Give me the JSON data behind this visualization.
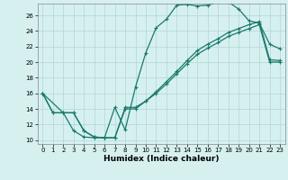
{
  "title": "",
  "xlabel": "Humidex (Indice chaleur)",
  "background_color": "#d6f0f0",
  "grid_color": "#b8dada",
  "line_color": "#1a7a6a",
  "xlim": [
    -0.5,
    23.5
  ],
  "ylim": [
    9.5,
    27.5
  ],
  "xticks": [
    0,
    1,
    2,
    3,
    4,
    5,
    6,
    7,
    8,
    9,
    10,
    11,
    12,
    13,
    14,
    15,
    16,
    17,
    18,
    19,
    20,
    21,
    22,
    23
  ],
  "yticks": [
    10,
    12,
    14,
    16,
    18,
    20,
    22,
    24,
    26
  ],
  "line1_x": [
    0,
    1,
    2,
    3,
    4,
    5,
    6,
    7,
    8,
    9,
    10,
    11,
    12,
    13,
    14,
    15,
    16,
    17,
    18,
    19,
    20,
    21,
    22,
    23
  ],
  "line1_y": [
    16,
    13.5,
    13.5,
    11.2,
    10.4,
    10.3,
    10.3,
    14.2,
    11.3,
    16.8,
    21.2,
    24.4,
    25.5,
    27.3,
    27.4,
    27.2,
    27.3,
    27.7,
    27.7,
    26.8,
    25.3,
    25.0,
    22.3,
    21.7
  ],
  "line2_x": [
    0,
    1,
    2,
    3,
    4,
    5,
    6,
    7,
    8,
    9,
    10,
    11,
    12,
    13,
    14,
    15,
    16,
    17,
    18,
    19,
    20,
    21,
    22,
    23
  ],
  "line2_y": [
    16,
    13.5,
    13.5,
    13.5,
    11.2,
    10.4,
    10.3,
    10.3,
    14.2,
    14.2,
    15.0,
    16.2,
    17.5,
    18.8,
    20.2,
    21.5,
    22.3,
    23.0,
    23.8,
    24.3,
    24.8,
    25.2,
    20.3,
    20.2
  ],
  "line3_x": [
    0,
    2,
    3,
    4,
    5,
    6,
    7,
    8,
    9,
    10,
    11,
    12,
    13,
    14,
    15,
    16,
    17,
    18,
    19,
    20,
    21,
    22,
    23
  ],
  "line3_y": [
    16,
    13.5,
    13.5,
    11.2,
    10.4,
    10.3,
    10.3,
    14.0,
    14.0,
    15.0,
    16.0,
    17.2,
    18.5,
    19.8,
    21.0,
    21.8,
    22.5,
    23.3,
    23.8,
    24.3,
    24.8,
    20.0,
    20.0
  ]
}
